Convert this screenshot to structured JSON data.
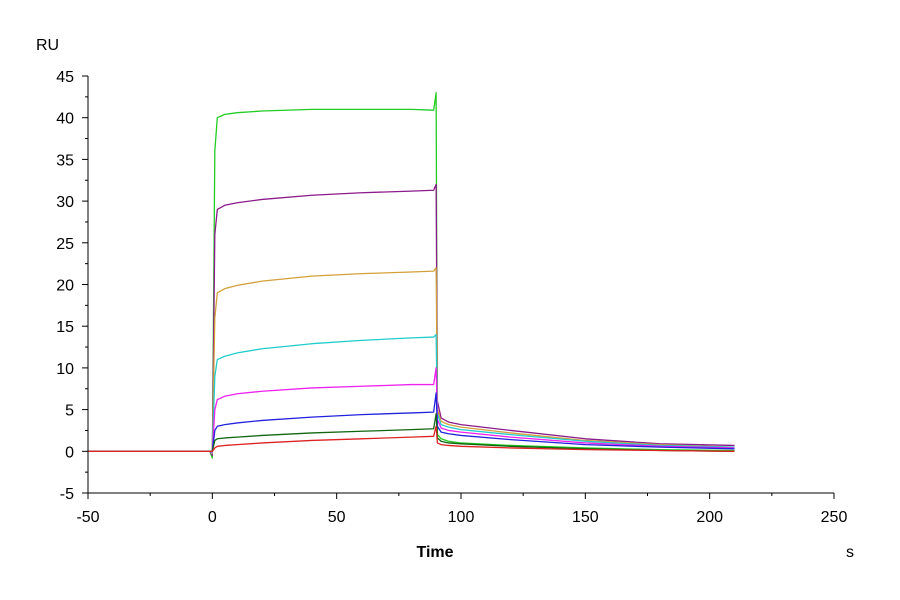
{
  "chart_data": {
    "type": "line",
    "title": "",
    "xlabel": "Time",
    "ylabel": "",
    "x_unit": "s",
    "y_unit": "RU",
    "xlim": [
      -50,
      250
    ],
    "ylim": [
      -5,
      45
    ],
    "x_ticks": [
      -50,
      0,
      50,
      100,
      150,
      200,
      250
    ],
    "y_ticks": [
      -5,
      0,
      5,
      10,
      15,
      20,
      25,
      30,
      35,
      40,
      45
    ],
    "x_tick_labels": [
      "-50",
      "0",
      "50",
      "100",
      "150",
      "200",
      "250"
    ],
    "y_tick_labels": [
      "-5",
      "0",
      "5",
      "10",
      "15",
      "20",
      "25",
      "30",
      "35",
      "40",
      "45"
    ],
    "grid": false,
    "legend": "none",
    "series": [
      {
        "color": "#22cc22",
        "x": [
          -50,
          -1,
          0,
          1,
          2,
          5,
          10,
          20,
          40,
          60,
          80,
          89,
          90,
          90.5,
          92,
          95,
          100,
          120,
          150,
          180,
          210
        ],
        "y": [
          0,
          0,
          -0.8,
          36,
          40,
          40.4,
          40.6,
          40.8,
          41.0,
          41.0,
          41.0,
          40.9,
          43,
          2.0,
          1.5,
          1.2,
          1.0,
          0.7,
          0.4,
          0.2,
          0.1
        ]
      },
      {
        "color": "#8b1a8b",
        "x": [
          -50,
          -1,
          0,
          1,
          2,
          5,
          10,
          20,
          40,
          60,
          80,
          89,
          90,
          90.5,
          92,
          95,
          100,
          120,
          150,
          180,
          210
        ],
        "y": [
          0,
          0,
          -0.5,
          26,
          29,
          29.5,
          29.8,
          30.2,
          30.7,
          31.0,
          31.2,
          31.3,
          32,
          6.0,
          4.0,
          3.5,
          3.2,
          2.5,
          1.5,
          0.9,
          0.7
        ]
      },
      {
        "color": "#d4a03a",
        "x": [
          -50,
          -1,
          0,
          1,
          2,
          5,
          10,
          20,
          40,
          60,
          80,
          89,
          90,
          90.5,
          92,
          95,
          100,
          120,
          150,
          180,
          210
        ],
        "y": [
          0,
          0,
          -0.3,
          16,
          19,
          19.5,
          19.9,
          20.4,
          21.0,
          21.3,
          21.5,
          21.6,
          22,
          5.0,
          3.6,
          3.2,
          2.9,
          2.2,
          1.3,
          0.8,
          0.5
        ]
      },
      {
        "color": "#22cccc",
        "x": [
          -50,
          -1,
          0,
          1,
          2,
          5,
          10,
          20,
          40,
          60,
          80,
          89,
          90,
          90.5,
          92,
          95,
          100,
          120,
          150,
          180,
          210
        ],
        "y": [
          0,
          0,
          -0.2,
          9,
          11,
          11.4,
          11.8,
          12.3,
          12.9,
          13.3,
          13.6,
          13.7,
          14,
          4.5,
          3.2,
          2.9,
          2.6,
          2.0,
          1.2,
          0.7,
          0.5
        ]
      },
      {
        "color": "#ee22ee",
        "x": [
          -50,
          -1,
          0,
          1,
          2,
          5,
          10,
          20,
          40,
          60,
          80,
          89,
          90,
          90.5,
          92,
          95,
          100,
          120,
          150,
          180,
          210
        ],
        "y": [
          0,
          0,
          -0.1,
          5,
          6.2,
          6.6,
          6.9,
          7.2,
          7.6,
          7.8,
          8.0,
          8.0,
          10.0,
          3.8,
          2.8,
          2.5,
          2.3,
          1.7,
          1.0,
          0.6,
          0.4
        ]
      },
      {
        "color": "#2222dd",
        "x": [
          -50,
          -1,
          0,
          1,
          2,
          5,
          10,
          20,
          40,
          60,
          80,
          89,
          90,
          90.5,
          92,
          95,
          100,
          120,
          150,
          180,
          210
        ],
        "y": [
          0,
          0,
          0,
          2.5,
          3.0,
          3.2,
          3.4,
          3.7,
          4.1,
          4.4,
          4.6,
          4.7,
          7.0,
          3.0,
          2.3,
          2.1,
          1.9,
          1.4,
          0.8,
          0.5,
          0.3
        ]
      },
      {
        "color": "#116611",
        "x": [
          -50,
          -1,
          0,
          1,
          2,
          5,
          10,
          20,
          40,
          60,
          80,
          89,
          90,
          90.5,
          92,
          95,
          100,
          120,
          150,
          180,
          210
        ],
        "y": [
          0,
          0,
          0,
          1.3,
          1.5,
          1.6,
          1.7,
          1.9,
          2.2,
          2.4,
          2.6,
          2.7,
          4.5,
          1.6,
          1.2,
          1.0,
          0.9,
          0.6,
          0.3,
          0.1,
          0.0
        ]
      },
      {
        "color": "#dd2222",
        "x": [
          -50,
          -1,
          0,
          1,
          2,
          5,
          10,
          20,
          40,
          60,
          80,
          89,
          90,
          90.5,
          92,
          95,
          100,
          120,
          150,
          180,
          210
        ],
        "y": [
          0,
          0,
          0,
          0.4,
          0.6,
          0.7,
          0.8,
          1.0,
          1.3,
          1.5,
          1.7,
          1.8,
          3.0,
          1.0,
          0.8,
          0.7,
          0.6,
          0.4,
          0.2,
          0.1,
          0.0
        ]
      }
    ]
  }
}
